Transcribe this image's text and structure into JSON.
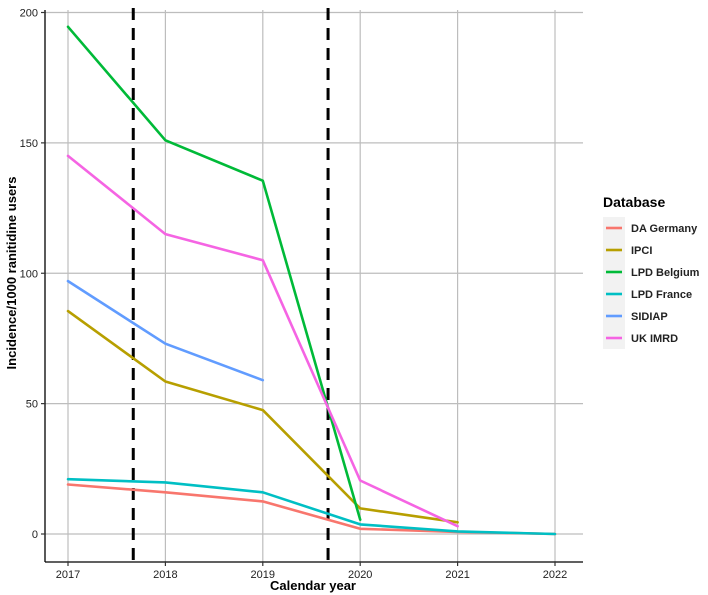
{
  "chart_data": {
    "type": "line",
    "xlabel": "Calendar year",
    "ylabel": "Incidence/1000 ranitidine users",
    "xlim": [
      2017,
      2022
    ],
    "ylim": [
      0,
      200
    ],
    "x_ticks": [
      2017,
      2018,
      2019,
      2020,
      2021,
      2022
    ],
    "y_ticks": [
      0,
      50,
      100,
      150,
      200
    ],
    "grid": true,
    "legend": {
      "title": "Database",
      "position": "right"
    },
    "reference_lines": [
      {
        "orientation": "vertical",
        "x": 2017.67,
        "style": "dashed"
      },
      {
        "orientation": "vertical",
        "x": 2019.67,
        "style": "dashed"
      }
    ],
    "series": [
      {
        "name": "DA Germany",
        "color": "#F8766D",
        "points": [
          [
            2017,
            19
          ],
          [
            2018,
            16
          ],
          [
            2019,
            12.5
          ],
          [
            2020,
            2
          ],
          [
            2021,
            0.8
          ],
          [
            2022,
            0
          ]
        ]
      },
      {
        "name": "IPCI",
        "color": "#B79F00",
        "points": [
          [
            2017,
            85.5
          ],
          [
            2018,
            58.5
          ],
          [
            2019,
            47.5
          ],
          [
            2020,
            9.8
          ],
          [
            2021,
            4.5
          ]
        ]
      },
      {
        "name": "LPD Belgium",
        "color": "#00BA38",
        "points": [
          [
            2017,
            194.5
          ],
          [
            2018,
            151
          ],
          [
            2019,
            135.5
          ],
          [
            2020,
            5.5
          ]
        ]
      },
      {
        "name": "LPD France",
        "color": "#00BFC4",
        "points": [
          [
            2017,
            21
          ],
          [
            2018,
            19.8
          ],
          [
            2019,
            16
          ],
          [
            2020,
            3.7
          ],
          [
            2021,
            1
          ],
          [
            2022,
            0
          ]
        ]
      },
      {
        "name": "SIDIAP",
        "color": "#619CFF",
        "points": [
          [
            2017,
            97
          ],
          [
            2018,
            73
          ],
          [
            2019,
            59
          ]
        ]
      },
      {
        "name": "UK IMRD",
        "color": "#F564E3",
        "points": [
          [
            2017,
            145
          ],
          [
            2018,
            115
          ],
          [
            2019,
            105
          ],
          [
            2020,
            20.5
          ],
          [
            2021,
            3
          ]
        ]
      }
    ]
  }
}
